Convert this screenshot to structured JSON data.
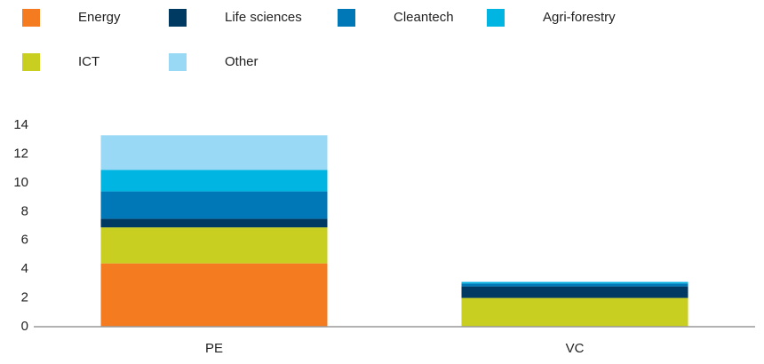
{
  "chart_data": {
    "type": "stacked_bar",
    "categories": [
      "PE",
      "VC"
    ],
    "series": [
      {
        "name": "Energy",
        "color": "#f47b20",
        "values": [
          4.4,
          0
        ]
      },
      {
        "name": "Life sciences",
        "color": "#003a63",
        "values": [
          0.6,
          0.8
        ]
      },
      {
        "name": "Cleantech",
        "color": "#0077b6",
        "values": [
          1.9,
          0.2
        ]
      },
      {
        "name": "Agri-forestry",
        "color": "#00b5e2",
        "values": [
          1.5,
          0.1
        ]
      },
      {
        "name": "ICT",
        "color": "#c8cf20",
        "values": [
          2.5,
          2.0
        ]
      },
      {
        "name": "Other",
        "color": "#99d9f5",
        "values": [
          2.4,
          0.05
        ]
      }
    ],
    "ylim": [
      0,
      14
    ],
    "yticks": [
      0,
      2,
      4,
      6,
      8,
      10,
      12,
      14
    ],
    "grid": false
  }
}
